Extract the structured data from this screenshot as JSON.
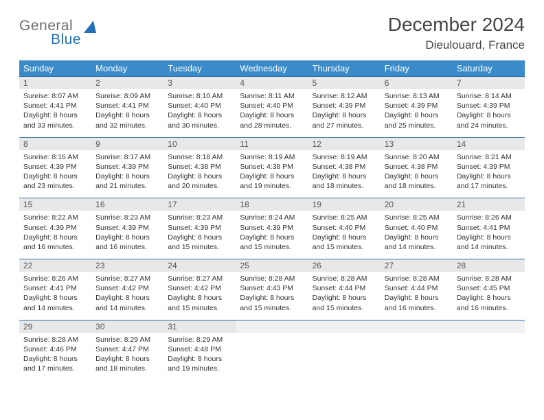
{
  "brand": {
    "part1": "General",
    "part2": "Blue"
  },
  "title": "December 2024",
  "location": "Dieulouard, France",
  "colors": {
    "header_bg": "#3a8bc9",
    "header_text": "#ffffff",
    "daynum_bg": "#e8e8e8",
    "border": "#2f6fa3",
    "brand_gray": "#6f6f6f",
    "brand_blue": "#2470b8"
  },
  "day_headers": [
    "Sunday",
    "Monday",
    "Tuesday",
    "Wednesday",
    "Thursday",
    "Friday",
    "Saturday"
  ],
  "weeks": [
    [
      {
        "n": "1",
        "sr": "Sunrise: 8:07 AM",
        "ss": "Sunset: 4:41 PM",
        "d1": "Daylight: 8 hours",
        "d2": "and 33 minutes."
      },
      {
        "n": "2",
        "sr": "Sunrise: 8:09 AM",
        "ss": "Sunset: 4:41 PM",
        "d1": "Daylight: 8 hours",
        "d2": "and 32 minutes."
      },
      {
        "n": "3",
        "sr": "Sunrise: 8:10 AM",
        "ss": "Sunset: 4:40 PM",
        "d1": "Daylight: 8 hours",
        "d2": "and 30 minutes."
      },
      {
        "n": "4",
        "sr": "Sunrise: 8:11 AM",
        "ss": "Sunset: 4:40 PM",
        "d1": "Daylight: 8 hours",
        "d2": "and 28 minutes."
      },
      {
        "n": "5",
        "sr": "Sunrise: 8:12 AM",
        "ss": "Sunset: 4:39 PM",
        "d1": "Daylight: 8 hours",
        "d2": "and 27 minutes."
      },
      {
        "n": "6",
        "sr": "Sunrise: 8:13 AM",
        "ss": "Sunset: 4:39 PM",
        "d1": "Daylight: 8 hours",
        "d2": "and 25 minutes."
      },
      {
        "n": "7",
        "sr": "Sunrise: 8:14 AM",
        "ss": "Sunset: 4:39 PM",
        "d1": "Daylight: 8 hours",
        "d2": "and 24 minutes."
      }
    ],
    [
      {
        "n": "8",
        "sr": "Sunrise: 8:16 AM",
        "ss": "Sunset: 4:39 PM",
        "d1": "Daylight: 8 hours",
        "d2": "and 23 minutes."
      },
      {
        "n": "9",
        "sr": "Sunrise: 8:17 AM",
        "ss": "Sunset: 4:39 PM",
        "d1": "Daylight: 8 hours",
        "d2": "and 21 minutes."
      },
      {
        "n": "10",
        "sr": "Sunrise: 8:18 AM",
        "ss": "Sunset: 4:38 PM",
        "d1": "Daylight: 8 hours",
        "d2": "and 20 minutes."
      },
      {
        "n": "11",
        "sr": "Sunrise: 8:19 AM",
        "ss": "Sunset: 4:38 PM",
        "d1": "Daylight: 8 hours",
        "d2": "and 19 minutes."
      },
      {
        "n": "12",
        "sr": "Sunrise: 8:19 AM",
        "ss": "Sunset: 4:38 PM",
        "d1": "Daylight: 8 hours",
        "d2": "and 18 minutes."
      },
      {
        "n": "13",
        "sr": "Sunrise: 8:20 AM",
        "ss": "Sunset: 4:38 PM",
        "d1": "Daylight: 8 hours",
        "d2": "and 18 minutes."
      },
      {
        "n": "14",
        "sr": "Sunrise: 8:21 AM",
        "ss": "Sunset: 4:39 PM",
        "d1": "Daylight: 8 hours",
        "d2": "and 17 minutes."
      }
    ],
    [
      {
        "n": "15",
        "sr": "Sunrise: 8:22 AM",
        "ss": "Sunset: 4:39 PM",
        "d1": "Daylight: 8 hours",
        "d2": "and 16 minutes."
      },
      {
        "n": "16",
        "sr": "Sunrise: 8:23 AM",
        "ss": "Sunset: 4:39 PM",
        "d1": "Daylight: 8 hours",
        "d2": "and 16 minutes."
      },
      {
        "n": "17",
        "sr": "Sunrise: 8:23 AM",
        "ss": "Sunset: 4:39 PM",
        "d1": "Daylight: 8 hours",
        "d2": "and 15 minutes."
      },
      {
        "n": "18",
        "sr": "Sunrise: 8:24 AM",
        "ss": "Sunset: 4:39 PM",
        "d1": "Daylight: 8 hours",
        "d2": "and 15 minutes."
      },
      {
        "n": "19",
        "sr": "Sunrise: 8:25 AM",
        "ss": "Sunset: 4:40 PM",
        "d1": "Daylight: 8 hours",
        "d2": "and 15 minutes."
      },
      {
        "n": "20",
        "sr": "Sunrise: 8:25 AM",
        "ss": "Sunset: 4:40 PM",
        "d1": "Daylight: 8 hours",
        "d2": "and 14 minutes."
      },
      {
        "n": "21",
        "sr": "Sunrise: 8:26 AM",
        "ss": "Sunset: 4:41 PM",
        "d1": "Daylight: 8 hours",
        "d2": "and 14 minutes."
      }
    ],
    [
      {
        "n": "22",
        "sr": "Sunrise: 8:26 AM",
        "ss": "Sunset: 4:41 PM",
        "d1": "Daylight: 8 hours",
        "d2": "and 14 minutes."
      },
      {
        "n": "23",
        "sr": "Sunrise: 8:27 AM",
        "ss": "Sunset: 4:42 PM",
        "d1": "Daylight: 8 hours",
        "d2": "and 14 minutes."
      },
      {
        "n": "24",
        "sr": "Sunrise: 8:27 AM",
        "ss": "Sunset: 4:42 PM",
        "d1": "Daylight: 8 hours",
        "d2": "and 15 minutes."
      },
      {
        "n": "25",
        "sr": "Sunrise: 8:28 AM",
        "ss": "Sunset: 4:43 PM",
        "d1": "Daylight: 8 hours",
        "d2": "and 15 minutes."
      },
      {
        "n": "26",
        "sr": "Sunrise: 8:28 AM",
        "ss": "Sunset: 4:44 PM",
        "d1": "Daylight: 8 hours",
        "d2": "and 15 minutes."
      },
      {
        "n": "27",
        "sr": "Sunrise: 8:28 AM",
        "ss": "Sunset: 4:44 PM",
        "d1": "Daylight: 8 hours",
        "d2": "and 16 minutes."
      },
      {
        "n": "28",
        "sr": "Sunrise: 8:28 AM",
        "ss": "Sunset: 4:45 PM",
        "d1": "Daylight: 8 hours",
        "d2": "and 16 minutes."
      }
    ],
    [
      {
        "n": "29",
        "sr": "Sunrise: 8:28 AM",
        "ss": "Sunset: 4:46 PM",
        "d1": "Daylight: 8 hours",
        "d2": "and 17 minutes."
      },
      {
        "n": "30",
        "sr": "Sunrise: 8:29 AM",
        "ss": "Sunset: 4:47 PM",
        "d1": "Daylight: 8 hours",
        "d2": "and 18 minutes."
      },
      {
        "n": "31",
        "sr": "Sunrise: 8:29 AM",
        "ss": "Sunset: 4:48 PM",
        "d1": "Daylight: 8 hours",
        "d2": "and 19 minutes."
      },
      null,
      null,
      null,
      null
    ]
  ]
}
